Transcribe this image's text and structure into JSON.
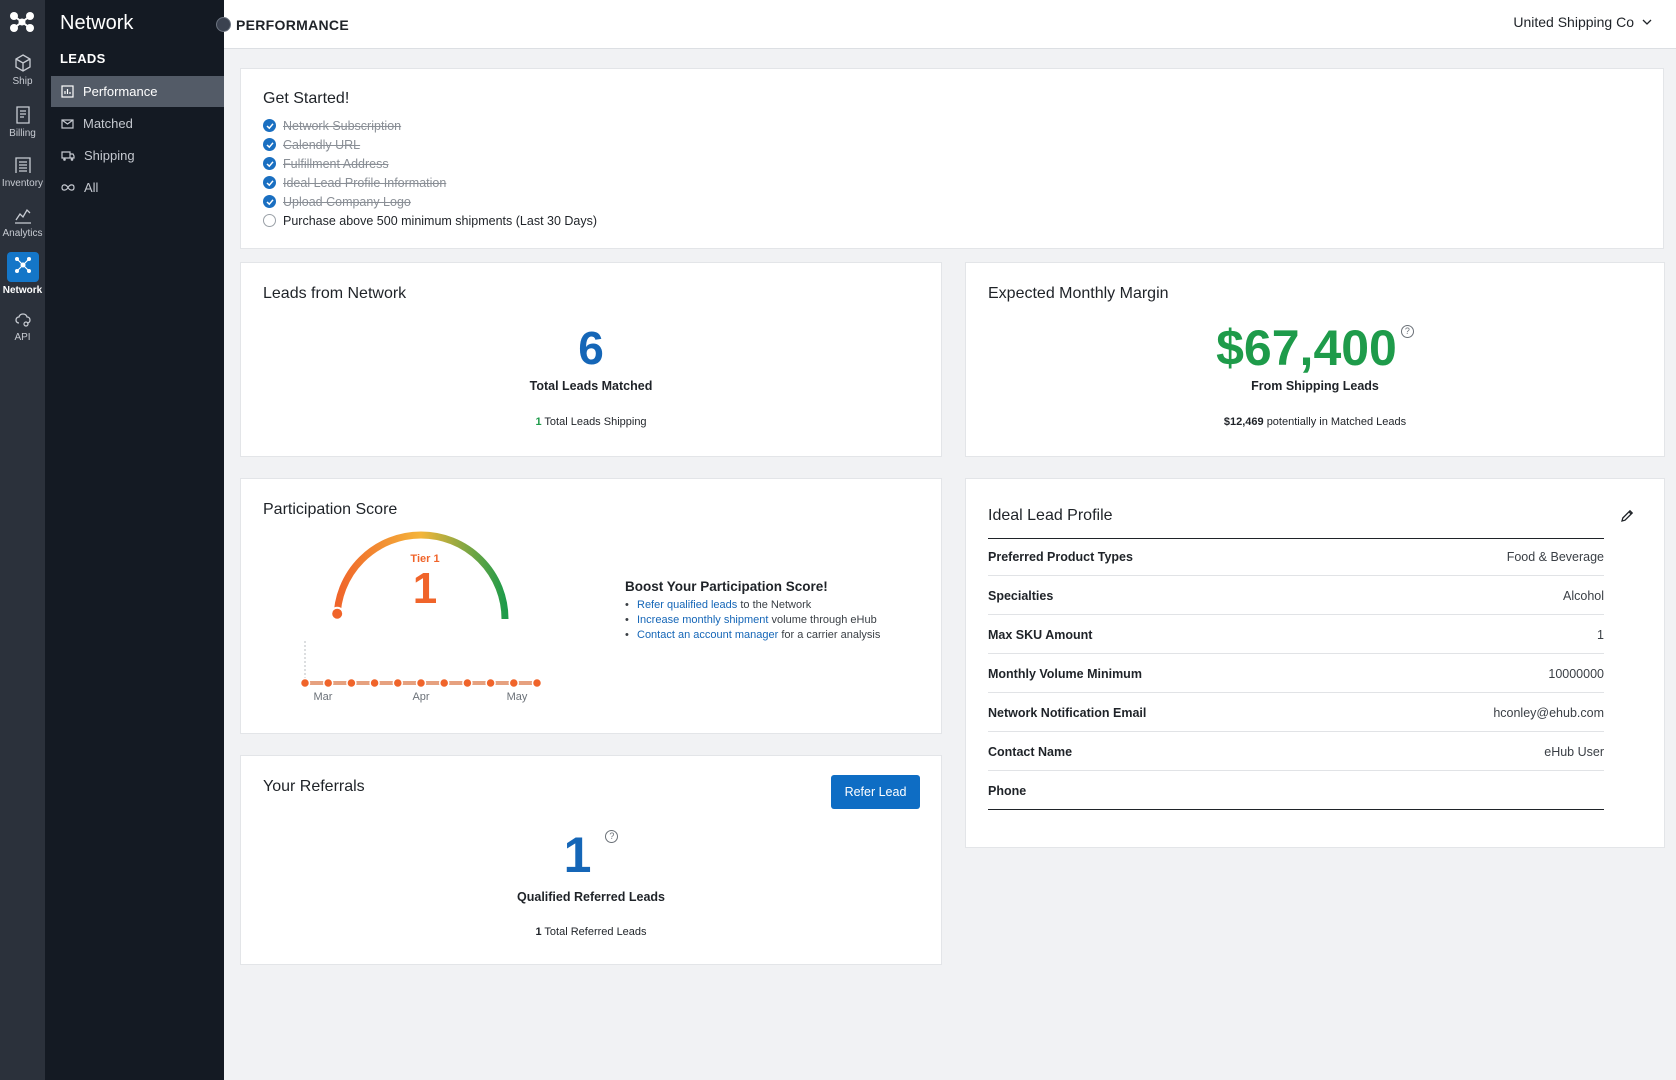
{
  "rail": {
    "items": [
      {
        "label": "Ship",
        "icon": "box-icon"
      },
      {
        "label": "Billing",
        "icon": "receipt-icon"
      },
      {
        "label": "Inventory",
        "icon": "warehouse-icon"
      },
      {
        "label": "Analytics",
        "icon": "chart-line-icon"
      },
      {
        "label": "Network",
        "icon": "network-icon",
        "active": true
      },
      {
        "label": "API",
        "icon": "cloud-gear-icon"
      }
    ]
  },
  "subnav": {
    "title": "Network",
    "section": "LEADS",
    "items": [
      {
        "label": "Performance",
        "active": true
      },
      {
        "label": "Matched"
      },
      {
        "label": "Shipping"
      },
      {
        "label": "All"
      }
    ]
  },
  "header": {
    "page_title": "PERFORMANCE",
    "account": "United Shipping Co"
  },
  "get_started": {
    "title": "Get Started!",
    "items": [
      {
        "label": "Network Subscription",
        "done": true
      },
      {
        "label": "Calendly URL",
        "done": true
      },
      {
        "label": "Fulfillment Address",
        "done": true
      },
      {
        "label": "Ideal Lead Profile Information",
        "done": true
      },
      {
        "label": "Upload Company Logo",
        "done": true
      },
      {
        "label": "Purchase above 500 minimum shipments (Last 30 Days)",
        "done": false
      }
    ]
  },
  "leads": {
    "title": "Leads from Network",
    "value": "6",
    "caption": "Total Leads Matched",
    "sub_count": "1",
    "sub_label": "Total Leads Shipping"
  },
  "margin": {
    "title": "Expected Monthly Margin",
    "value": "$67,400",
    "caption": "From Shipping Leads",
    "sub_amount": "$12,469",
    "sub_label": "potentially in Matched Leads"
  },
  "participation": {
    "title": "Participation Score",
    "tier_label": "Tier 1",
    "score": "1",
    "gauge_fraction": 0.02,
    "timeline": {
      "labels": [
        "Mar",
        "Apr",
        "May"
      ],
      "points": 11
    },
    "boost_title": "Boost Your Participation Score!",
    "boost_items": [
      {
        "link": "Refer qualified leads",
        "text": " to the Network"
      },
      {
        "link": "Increase monthly shipment",
        "text": " volume through eHub"
      },
      {
        "link": "Contact an account manager",
        "text": " for a carrier analysis"
      }
    ]
  },
  "referrals": {
    "title": "Your Referrals",
    "button": "Refer Lead",
    "value": "1",
    "caption": "Qualified Referred Leads",
    "sub_count": "1",
    "sub_label": "Total Referred Leads"
  },
  "profile": {
    "title": "Ideal Lead Profile",
    "rows": [
      {
        "key": "Preferred Product Types",
        "value": "Food & Beverage"
      },
      {
        "key": "Specialties",
        "value": "Alcohol"
      },
      {
        "key": "Max SKU Amount",
        "value": "1"
      },
      {
        "key": "Monthly Volume Minimum",
        "value": "10000000"
      },
      {
        "key": "Network Notification Email",
        "value": "hconley@ehub.com"
      },
      {
        "key": "Contact Name",
        "value": "eHub User"
      },
      {
        "key": "Phone",
        "value": ""
      }
    ]
  },
  "colors": {
    "accent_blue": "#0e6dc4",
    "green": "#1e9b4a",
    "orange": "#f0642a"
  }
}
